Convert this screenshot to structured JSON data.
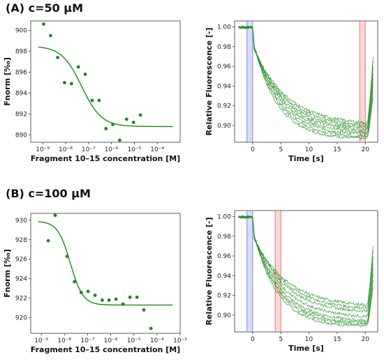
{
  "panels": [
    {
      "id": "A",
      "title": "(A) c=50 μM"
    },
    {
      "id": "B",
      "title": "(B) c=100 μM"
    }
  ],
  "chart_data": [
    {
      "type": "scatter",
      "panel": "A",
      "xlabel": "Fragment 10–15 concentration [M]",
      "ylabel": "Fnorm [‰]",
      "xscale": "log",
      "xlim": [
        3e-10,
        0.001
      ],
      "ylim": [
        889.3,
        900.9
      ],
      "xticks": [
        "10⁻⁹",
        "10⁻⁸",
        "10⁻⁷",
        "10⁻⁶",
        "10⁻⁵",
        "10⁻⁴"
      ],
      "yticks": [
        890,
        892,
        894,
        896,
        898,
        900
      ],
      "series": [
        {
          "kind": "points",
          "color": "#1a8a1a",
          "x": [
            1.1e-09,
            2.2e-09,
            4.5e-09,
            9e-09,
            1.8e-08,
            3.6e-08,
            7.2e-08,
            1.45e-07,
            2.9e-07,
            5.8e-07,
            1.15e-06,
            2.3e-06,
            4.6e-06,
            9.2e-06,
            1.85e-05
          ],
          "y": [
            900.6,
            899.5,
            897.4,
            895.0,
            894.9,
            896.5,
            895.8,
            893.3,
            893.3,
            890.6,
            891.0,
            889.5,
            891.5,
            891.2,
            891.9
          ]
        },
        {
          "kind": "fit",
          "color": "#1a8a1a",
          "top": 898.5,
          "bottom": 890.8,
          "ec50": 5e-08,
          "hill": 1.0
        }
      ]
    },
    {
      "type": "line",
      "panel": "A",
      "xlabel": "Time [s]",
      "ylabel": "Relative Fluorescence [-]",
      "xlim": [
        -3.2,
        22.2
      ],
      "ylim": [
        0.883,
        1.006
      ],
      "xticks": [
        0,
        5,
        10,
        15,
        20
      ],
      "yticks": [
        "0.90",
        "0.92",
        "0.94",
        "0.96",
        "0.98",
        "1.00"
      ],
      "color": "#1a8a1a",
      "cold_region": [
        -1,
        0
      ],
      "hot_region": [
        19,
        20
      ],
      "traces": 8,
      "start_value": 1.0,
      "end_values": [
        0.886,
        0.888,
        0.89,
        0.892,
        0.894,
        0.896,
        0.898,
        0.9
      ]
    },
    {
      "type": "scatter",
      "panel": "B",
      "xlabel": "Fragment 10–15 concentration [M]",
      "ylabel": "Fnorm [‰]",
      "xscale": "log",
      "xlim": [
        3.5e-10,
        0.001
      ],
      "ylim": [
        918.4,
        930.7
      ],
      "xticks": [
        "10⁻⁹",
        "10⁻⁸",
        "10⁻⁷",
        "10⁻⁶",
        "10⁻⁵",
        "10⁻⁴",
        "10⁻³"
      ],
      "yticks": [
        920,
        922,
        924,
        926,
        928,
        930
      ],
      "series": [
        {
          "kind": "points",
          "color": "#1a8a1a",
          "x": [
            2e-09,
            4e-09,
            1.3e-08,
            2.7e-08,
            5.3e-08,
            1.06e-07,
            2.1e-07,
            4.3e-07,
            8.5e-07,
            1.7e-06,
            3.4e-06,
            6.8e-06,
            1.37e-05,
            2.7e-05,
            5.5e-05
          ],
          "y": [
            927.9,
            930.5,
            926.3,
            923.7,
            922.6,
            922.7,
            922.3,
            921.8,
            921.8,
            921.9,
            921.4,
            922.1,
            922.1,
            920.8,
            918.9
          ]
        },
        {
          "kind": "fit",
          "color": "#1a8a1a",
          "top": 929.9,
          "bottom": 921.3,
          "ec50": 1.8e-08,
          "hill": 1.6
        }
      ]
    },
    {
      "type": "line",
      "panel": "B",
      "xlabel": "Time [s]",
      "ylabel": "Relative Fluorescence [-]",
      "xlim": [
        -3.2,
        22.2
      ],
      "ylim": [
        0.883,
        1.006
      ],
      "xticks": [
        0,
        5,
        10,
        15,
        20
      ],
      "yticks": [
        "0.90",
        "0.92",
        "0.94",
        "0.96",
        "0.98",
        "1.00"
      ],
      "color": "#1a8a1a",
      "cold_region": [
        -1,
        0
      ],
      "hot_region": [
        4,
        5
      ],
      "traces": 8,
      "start_value": 1.0,
      "end_values": [
        0.888,
        0.89,
        0.891,
        0.893,
        0.897,
        0.902,
        0.905,
        0.908
      ]
    }
  ]
}
